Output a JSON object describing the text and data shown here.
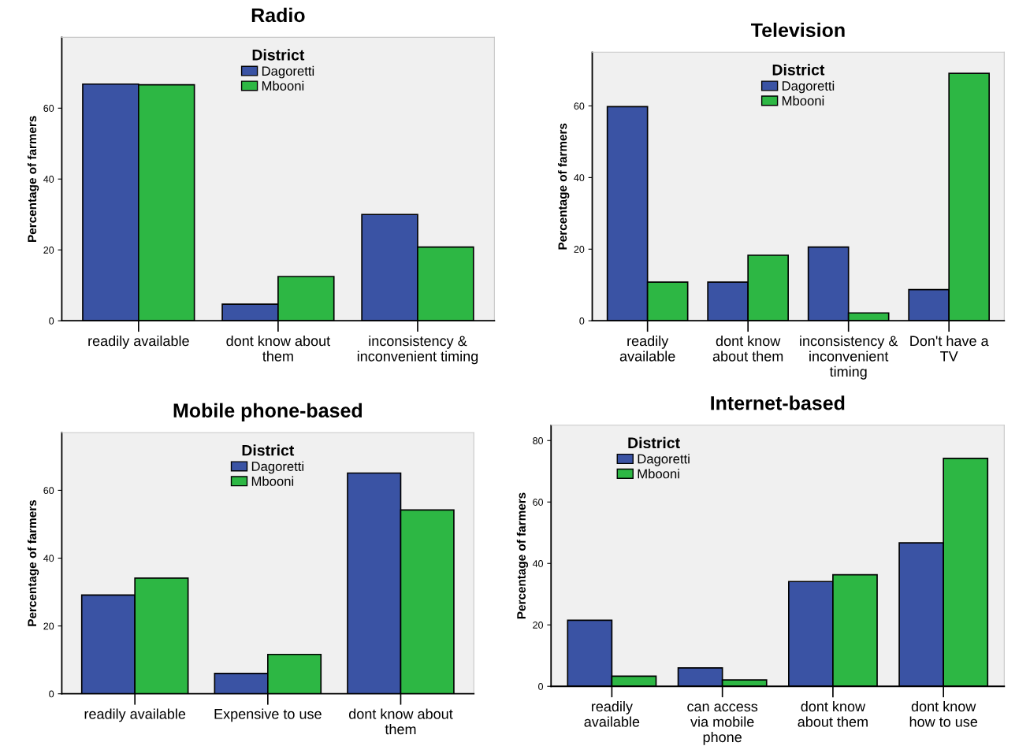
{
  "chart_data": [
    {
      "type": "bar",
      "title": "Radio",
      "ylabel": "Percentage of farmers",
      "legend_title": "District",
      "legend": "top",
      "categories": [
        "readily available",
        "dont know about\nthem",
        "inconsistency &\ninconvenient timing"
      ],
      "series": [
        {
          "name": "Dagoretti",
          "color": "#3a53a4",
          "values": [
            66.8,
            4.7,
            30.0
          ]
        },
        {
          "name": "Mbooni",
          "color": "#2db744",
          "values": [
            66.6,
            12.5,
            20.8
          ]
        }
      ],
      "ylim": [
        0,
        80
      ],
      "yticks": [
        0,
        20,
        40,
        60
      ]
    },
    {
      "type": "bar",
      "title": "Television",
      "ylabel": "Percentage of farmers",
      "legend_title": "District",
      "legend": "top",
      "categories": [
        "readily\navailable",
        "dont know\nabout them",
        "inconsistency &\ninconvenient\ntiming",
        "Don't have a\nTV"
      ],
      "series": [
        {
          "name": "Dagoretti",
          "color": "#3a53a4",
          "values": [
            59.8,
            10.8,
            20.6,
            8.7
          ]
        },
        {
          "name": "Mbooni",
          "color": "#2db744",
          "values": [
            10.8,
            18.3,
            2.2,
            69.1
          ]
        }
      ],
      "ylim": [
        0,
        75
      ],
      "yticks": [
        0,
        20,
        40,
        60
      ]
    },
    {
      "type": "bar",
      "title": "Mobile phone-based",
      "ylabel": "Percentage of farmers",
      "legend_title": "District",
      "legend": "top",
      "categories": [
        "readily available",
        "Expensive to use",
        "dont know about\nthem"
      ],
      "series": [
        {
          "name": "Dagoretti",
          "color": "#3a53a4",
          "values": [
            29.1,
            6.0,
            65.1
          ]
        },
        {
          "name": "Mbooni",
          "color": "#2db744",
          "values": [
            34.1,
            11.6,
            54.2
          ]
        }
      ],
      "ylim": [
        0,
        77
      ],
      "yticks": [
        0,
        20,
        40,
        60
      ]
    },
    {
      "type": "bar",
      "title": "Internet-based",
      "ylabel": "Percentage of farmers",
      "legend_title": "District",
      "legend": "top left",
      "categories": [
        "readily\navailable",
        "can access\nvia mobile\nphone",
        "dont know\nabout them",
        "dont know\nhow to use"
      ],
      "series": [
        {
          "name": "Dagoretti",
          "color": "#3a53a4",
          "values": [
            21.5,
            6.0,
            34.1,
            46.7
          ]
        },
        {
          "name": "Mbooni",
          "color": "#2db744",
          "values": [
            3.3,
            2.1,
            36.3,
            74.2
          ]
        }
      ],
      "ylim": [
        0,
        85
      ],
      "yticks": [
        0,
        20,
        40,
        60,
        80
      ]
    }
  ]
}
